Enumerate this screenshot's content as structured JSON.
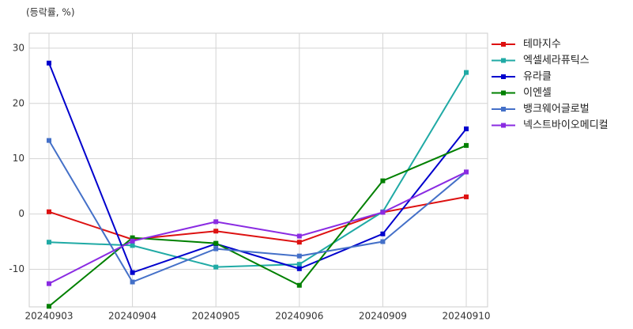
{
  "chart_data": {
    "type": "line",
    "ylabel": "(등락률, %)",
    "categories": [
      "20240903",
      "20240904",
      "20240905",
      "20240906",
      "20240909",
      "20240910"
    ],
    "series": [
      {
        "name": "테마지수",
        "color": "#dd1111",
        "values": [
          0.4,
          -4.6,
          -3.1,
          -5.1,
          0.3,
          3.1
        ]
      },
      {
        "name": "엑셀세라퓨틱스",
        "color": "#20aaa5",
        "values": [
          -5.1,
          -5.7,
          -9.6,
          -9.1,
          0.4,
          25.6
        ]
      },
      {
        "name": "유라클",
        "color": "#0000cd",
        "values": [
          27.3,
          -10.6,
          -5.4,
          -9.9,
          -3.6,
          15.4
        ]
      },
      {
        "name": "이엔셀",
        "color": "#008000",
        "values": [
          -16.7,
          -4.3,
          -5.3,
          -12.9,
          6.0,
          12.4
        ]
      },
      {
        "name": "뱅크웨어글로벌",
        "color": "#4470c8",
        "values": [
          13.3,
          -12.3,
          -6.3,
          -7.6,
          -5.0,
          7.6
        ]
      },
      {
        "name": "넥스트바이오메디컬",
        "color": "#8a2be2",
        "values": [
          -12.6,
          -4.9,
          -1.4,
          -4.0,
          0.3,
          7.6
        ]
      }
    ],
    "ylim": [
      -16.8,
      32.7
    ],
    "yticks": [
      -10,
      0,
      10,
      20,
      30
    ],
    "grid": true,
    "legend": "right"
  }
}
